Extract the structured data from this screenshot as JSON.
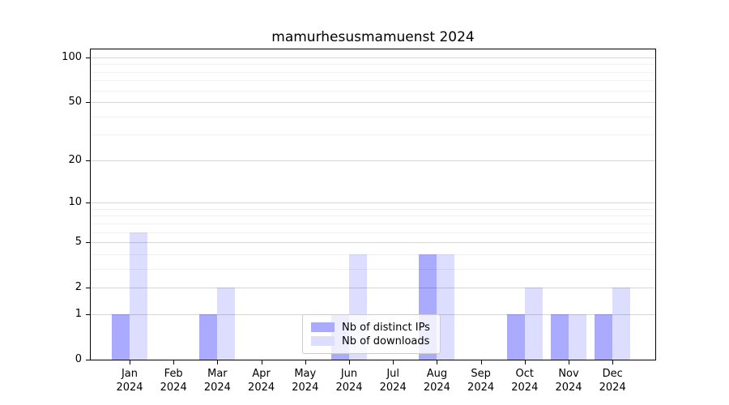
{
  "chart_data": {
    "type": "bar",
    "title": "mamurhesusmamuenst 2024",
    "categories": [
      "Jan",
      "Feb",
      "Mar",
      "Apr",
      "May",
      "Jun",
      "Jul",
      "Aug",
      "Sep",
      "Oct",
      "Nov",
      "Dec"
    ],
    "xtick_year": "2024",
    "series": [
      {
        "name": "Nb of distinct IPs",
        "color": "#aaaaff",
        "values": [
          1,
          0,
          1,
          0,
          0,
          1,
          0,
          4,
          0,
          1,
          1,
          1
        ]
      },
      {
        "name": "Nb of downloads",
        "color": "#ddddff",
        "values": [
          6,
          0,
          2,
          0,
          0,
          4,
          0,
          4,
          0,
          2,
          1,
          2
        ]
      }
    ],
    "yscale": "log1p",
    "ylim": [
      0,
      113
    ],
    "yticks": [
      0,
      1,
      2,
      5,
      10,
      20,
      50,
      100
    ],
    "yticks_minor": [
      3,
      4,
      6,
      7,
      8,
      9,
      30,
      40,
      60,
      70,
      80,
      90
    ],
    "grid": "both",
    "legend_position": "lower-center",
    "xlabel": "",
    "ylabel": ""
  },
  "colors": {
    "background": "#ffffff",
    "spine": "#000000",
    "grid_major": "#d6d6d6",
    "grid_minor": "#efefef",
    "text": "#000000"
  }
}
